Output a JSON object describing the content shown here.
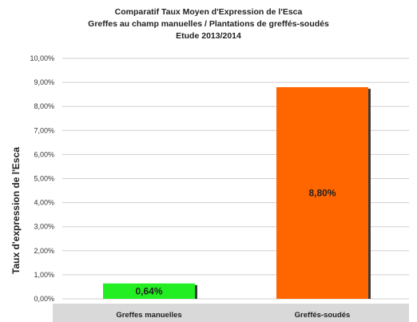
{
  "chart_data": {
    "type": "bar",
    "title": [
      "Comparatif  Taux Moyen d'Expression de l'Esca",
      "Greffes au champ manuelles / Plantations de greffés-soudés",
      "Etude 2013/2014"
    ],
    "xlabel": "",
    "ylabel": "Taux d'expression de l'Esca",
    "categories": [
      "Greffes manuelles",
      "Greffés-soudés"
    ],
    "values": [
      0.64,
      8.8
    ],
    "value_labels": [
      "0,64%",
      "8,80%"
    ],
    "colors": [
      "#22ee22",
      "#ff6600"
    ],
    "ylim": [
      0,
      10
    ],
    "yticks": [
      0,
      1,
      2,
      3,
      4,
      5,
      6,
      7,
      8,
      9,
      10
    ],
    "ytick_labels": [
      "0,00%",
      "1,00%",
      "2,00%",
      "3,00%",
      "4,00%",
      "5,00%",
      "6,00%",
      "7,00%",
      "8,00%",
      "9,00%",
      "10,00%"
    ],
    "grid": true,
    "legend": "none",
    "category_band_color": "#d9d9d9",
    "gridline_color": "#cfcfcf"
  }
}
